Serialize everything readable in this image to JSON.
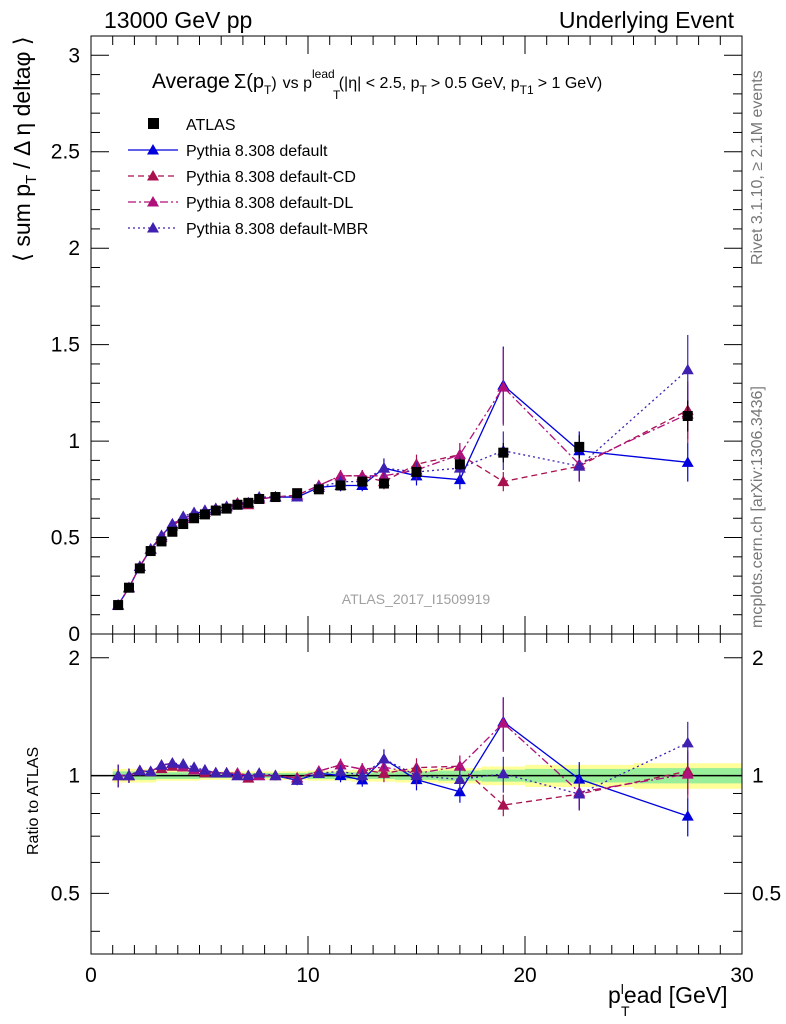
{
  "header": {
    "left": "13000 GeV pp",
    "right": "Underlying Event"
  },
  "side_text": {
    "rivet": "Rivet 3.1.10, ≥ 2.1M events",
    "mcplots": "mcplots.cern.ch [arXiv:1306.3436]"
  },
  "watermark": "ATLAS_2017_I1509919",
  "title": {
    "main": "Average",
    "sigma": "Σ(p",
    "sigma_sub": "T",
    "sigma_close": ")",
    "vs": "vs p",
    "vs_sup": "lead",
    "vs_sub": "T",
    "cuts_a": "(|η| < 2.5, p",
    "cuts_sub_a": "T",
    "cuts_b": "> 0.5 GeV, p",
    "cuts_sub_b": "T1",
    "cuts_c": "> 1 GeV)"
  },
  "ylabel_main": {
    "part1": "⟨ sum p",
    "sub": "T",
    "part2": "/ Δ η deltaφ ⟩"
  },
  "ylabel_ratio": "Ratio to ATLAS",
  "xlabel": {
    "part1": "p",
    "sup": "l",
    "sub": "T",
    "part2": "ead [GeV]"
  },
  "colors": {
    "atlas": "#000000",
    "default": "#0000dd",
    "cd": "#a8104e",
    "dl": "#b0107a",
    "mbr": "#4020b0",
    "band_yellow": "#ffff99",
    "band_green": "#99ee99"
  },
  "chart_data": {
    "type": "scatter",
    "x_range": [
      0,
      30
    ],
    "y_range_main": [
      0,
      3.1
    ],
    "y_range_ratio": [
      0.35,
      2.3
    ],
    "x_ticks": [
      "0",
      "10",
      "20",
      "30"
    ],
    "y_ticks_main": [
      "0",
      "0.5",
      "1",
      "1.5",
      "2",
      "2.5",
      "3"
    ],
    "y_ticks_ratio": [
      "0.5",
      "1",
      "2"
    ],
    "x": [
      1.25,
      1.75,
      2.25,
      2.75,
      3.25,
      3.75,
      4.25,
      4.75,
      5.25,
      5.75,
      6.25,
      6.75,
      7.25,
      7.75,
      8.5,
      9.5,
      10.5,
      11.5,
      12.5,
      13.5,
      15,
      17,
      19,
      22.5,
      27.5
    ],
    "series": [
      {
        "name": "ATLAS",
        "key": "atlas",
        "marker": "square",
        "y": [
          0.15,
          0.24,
          0.34,
          0.43,
          0.48,
          0.53,
          0.57,
          0.6,
          0.62,
          0.64,
          0.65,
          0.67,
          0.68,
          0.7,
          0.71,
          0.73,
          0.75,
          0.77,
          0.79,
          0.78,
          0.84,
          0.88,
          0.94,
          0.97,
          1.13
        ],
        "err": [
          0.01,
          0.01,
          0.01,
          0.01,
          0.01,
          0.01,
          0.01,
          0.01,
          0.01,
          0.01,
          0.01,
          0.01,
          0.01,
          0.01,
          0.01,
          0.01,
          0.01,
          0.01,
          0.01,
          0.02,
          0.02,
          0.03,
          0.05,
          0.06,
          0.08
        ]
      },
      {
        "name": "Pythia 8.308 default",
        "key": "default",
        "marker": "triangle",
        "line": "solid",
        "y": [
          0.15,
          0.24,
          0.35,
          0.44,
          0.51,
          0.57,
          0.6,
          0.62,
          0.64,
          0.65,
          0.66,
          0.67,
          0.68,
          0.7,
          0.71,
          0.71,
          0.76,
          0.77,
          0.77,
          0.86,
          0.82,
          0.8,
          1.29,
          0.95,
          0.89
        ],
        "err": [
          0.01,
          0.01,
          0.01,
          0.01,
          0.01,
          0.01,
          0.01,
          0.01,
          0.01,
          0.01,
          0.01,
          0.01,
          0.01,
          0.01,
          0.02,
          0.02,
          0.02,
          0.03,
          0.03,
          0.05,
          0.05,
          0.05,
          0.2,
          0.1,
          0.1
        ]
      },
      {
        "name": "Pythia 8.308 default-CD",
        "key": "cd",
        "marker": "triangle",
        "line": "dashed",
        "y": [
          0.15,
          0.24,
          0.35,
          0.44,
          0.5,
          0.56,
          0.6,
          0.62,
          0.63,
          0.65,
          0.66,
          0.67,
          0.67,
          0.7,
          0.71,
          0.72,
          0.77,
          0.82,
          0.82,
          0.79,
          0.88,
          0.93,
          0.79,
          0.87,
          1.16
        ],
        "err": [
          0.01,
          0.01,
          0.01,
          0.01,
          0.01,
          0.01,
          0.01,
          0.01,
          0.01,
          0.01,
          0.01,
          0.01,
          0.01,
          0.01,
          0.02,
          0.02,
          0.02,
          0.03,
          0.03,
          0.04,
          0.05,
          0.06,
          0.05,
          0.08,
          0.15
        ]
      },
      {
        "name": "Pythia 8.308 default-DL",
        "key": "dl",
        "marker": "triangle",
        "line": "dashdot",
        "y": [
          0.15,
          0.24,
          0.35,
          0.44,
          0.51,
          0.57,
          0.6,
          0.62,
          0.64,
          0.65,
          0.66,
          0.68,
          0.68,
          0.7,
          0.71,
          0.72,
          0.77,
          0.82,
          0.82,
          0.82,
          0.85,
          0.93,
          1.28,
          0.88,
          1.14
        ],
        "err": [
          0.01,
          0.01,
          0.01,
          0.01,
          0.01,
          0.01,
          0.01,
          0.01,
          0.01,
          0.01,
          0.01,
          0.01,
          0.01,
          0.01,
          0.02,
          0.02,
          0.02,
          0.03,
          0.03,
          0.04,
          0.05,
          0.06,
          0.2,
          0.08,
          0.15
        ]
      },
      {
        "name": "Pythia 8.308 default-MBR",
        "key": "mbr",
        "marker": "triangle",
        "line": "dotted",
        "y": [
          0.15,
          0.24,
          0.35,
          0.44,
          0.51,
          0.57,
          0.61,
          0.63,
          0.64,
          0.65,
          0.66,
          0.67,
          0.68,
          0.71,
          0.71,
          0.71,
          0.76,
          0.79,
          0.79,
          0.86,
          0.84,
          0.86,
          0.95,
          0.87,
          1.37
        ],
        "err": [
          0.01,
          0.01,
          0.01,
          0.01,
          0.01,
          0.01,
          0.01,
          0.01,
          0.01,
          0.01,
          0.01,
          0.01,
          0.01,
          0.01,
          0.02,
          0.02,
          0.02,
          0.03,
          0.03,
          0.05,
          0.05,
          0.06,
          0.1,
          0.08,
          0.18
        ]
      }
    ],
    "ratio_band": {
      "x_edges": [
        1,
        3,
        5,
        10,
        12,
        14,
        16,
        18,
        20,
        25,
        30
      ],
      "yellow_half": [
        0.04,
        0.03,
        0.025,
        0.03,
        0.035,
        0.04,
        0.045,
        0.055,
        0.065,
        0.075,
        0.075
      ],
      "green_half": [
        0.025,
        0.02,
        0.015,
        0.02,
        0.02,
        0.025,
        0.03,
        0.035,
        0.04,
        0.045,
        0.045
      ]
    }
  }
}
